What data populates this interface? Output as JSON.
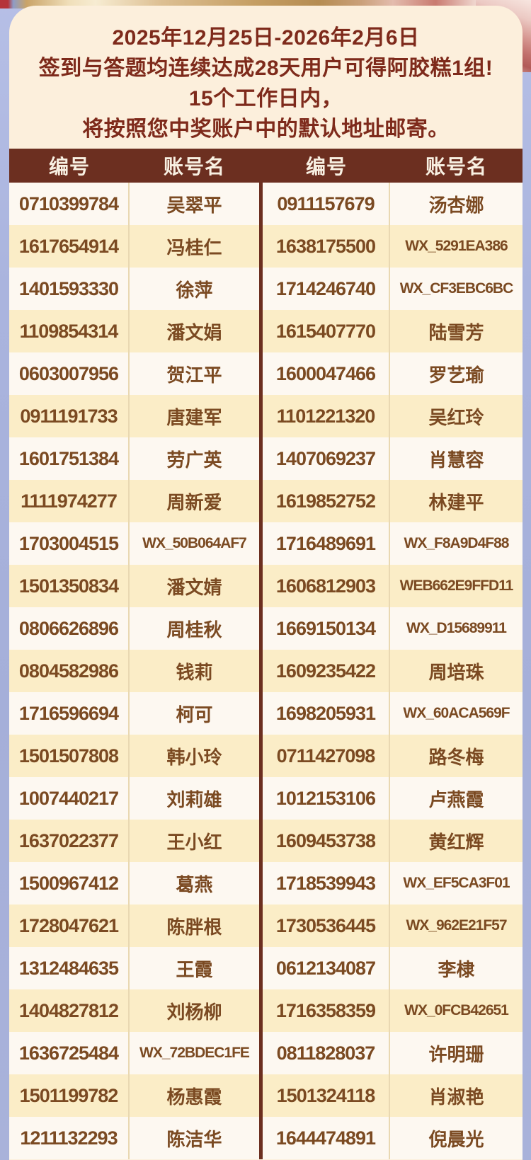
{
  "notice": {
    "lines": [
      "2025年12月25日-2026年2月6日",
      "签到与答题均连续达成28天用户可得阿胶糕1组!",
      "15个工作日内，",
      "将按照您中奖账户中的默认地址邮寄。"
    ]
  },
  "table": {
    "headers": [
      "编号",
      "账号名",
      "编号",
      "账号名"
    ],
    "rows": [
      {
        "id1": "0710399784",
        "name1": "吴翠平",
        "id2": "0911157679",
        "name2": "汤杏娜"
      },
      {
        "id1": "1617654914",
        "name1": "冯桂仁",
        "id2": "1638175500",
        "name2": "WX_5291EA386"
      },
      {
        "id1": "1401593330",
        "name1": "徐萍",
        "id2": "1714246740",
        "name2": "WX_CF3EBC6BC"
      },
      {
        "id1": "1109854314",
        "name1": "潘文娟",
        "id2": "1615407770",
        "name2": "陆雪芳"
      },
      {
        "id1": "0603007956",
        "name1": "贺江平",
        "id2": "1600047466",
        "name2": "罗艺瑜"
      },
      {
        "id1": "0911191733",
        "name1": "唐建军",
        "id2": "1101221320",
        "name2": "吴红玲"
      },
      {
        "id1": "1601751384",
        "name1": "劳广英",
        "id2": "1407069237",
        "name2": "肖慧容"
      },
      {
        "id1": "1111974277",
        "name1": "周新爱",
        "id2": "1619852752",
        "name2": "林建平"
      },
      {
        "id1": "1703004515",
        "name1": "WX_50B064AF7",
        "id2": "1716489691",
        "name2": "WX_F8A9D4F88"
      },
      {
        "id1": "1501350834",
        "name1": "潘文婧",
        "id2": "1606812903",
        "name2": "WEB662E9FFD11"
      },
      {
        "id1": "0806626896",
        "name1": "周桂秋",
        "id2": "1669150134",
        "name2": "WX_D15689911"
      },
      {
        "id1": "0804582986",
        "name1": "钱莉",
        "id2": "1609235422",
        "name2": "周培珠"
      },
      {
        "id1": "1716596694",
        "name1": "柯可",
        "id2": "1698205931",
        "name2": "WX_60ACA569F"
      },
      {
        "id1": "1501507808",
        "name1": "韩小玲",
        "id2": "0711427098",
        "name2": "路冬梅"
      },
      {
        "id1": "1007440217",
        "name1": "刘莉雄",
        "id2": "1012153106",
        "name2": "卢燕霞"
      },
      {
        "id1": "1637022377",
        "name1": "王小红",
        "id2": "1609453738",
        "name2": "黄红辉"
      },
      {
        "id1": "1500967412",
        "name1": "葛燕",
        "id2": "1718539943",
        "name2": "WX_EF5CA3F01"
      },
      {
        "id1": "1728047621",
        "name1": "陈胖根",
        "id2": "1730536445",
        "name2": "WX_962E21F57"
      },
      {
        "id1": "1312484635",
        "name1": "王霞",
        "id2": "0612134087",
        "name2": "李棣"
      },
      {
        "id1": "1404827812",
        "name1": "刘杨柳",
        "id2": "1716358359",
        "name2": "WX_0FCB42651"
      },
      {
        "id1": "1636725484",
        "name1": "WX_72BDEC1FE",
        "id2": "0811828037",
        "name2": "许明珊"
      },
      {
        "id1": "1501199782",
        "name1": "杨惠霞",
        "id2": "1501324118",
        "name2": "肖淑艳"
      },
      {
        "id1": "1211132293",
        "name1": "陈洁华",
        "id2": "1644474891",
        "name2": "倪晨光"
      }
    ]
  },
  "colors": {
    "card_background": "#fcefdc",
    "notice_text": "#7e2a1b",
    "header_background": "#6c2f20",
    "header_text": "#f8f0e2",
    "row_yellow": "#fbedc7",
    "row_white": "#fdf8f1",
    "cell_text": "#7b4a22",
    "page_background": "#aab4de"
  }
}
